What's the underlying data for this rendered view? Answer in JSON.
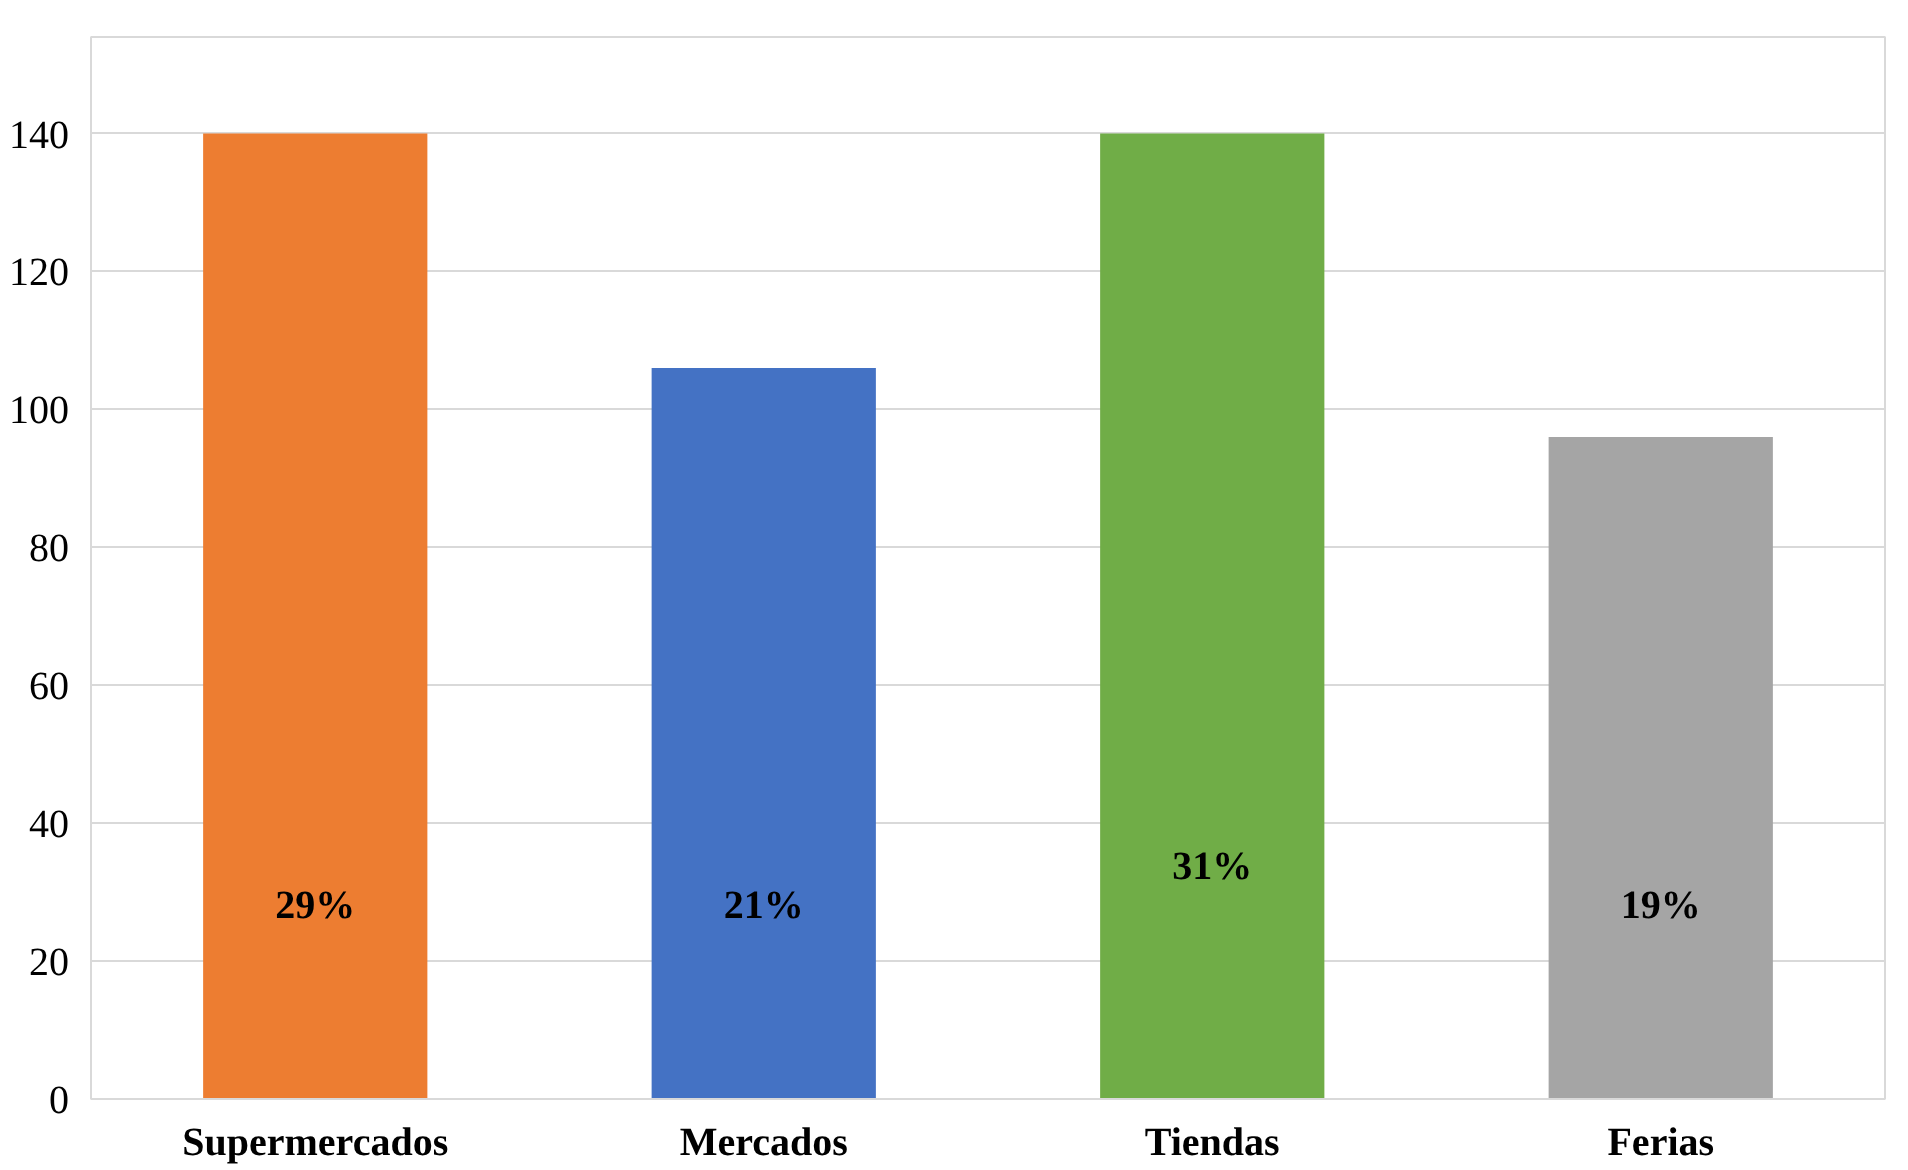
{
  "chart_data": {
    "type": "bar",
    "categories": [
      "Supermercados",
      "Mercados",
      "Tiendas",
      "Ferias"
    ],
    "values": [
      140,
      106,
      140,
      96
    ],
    "colors": [
      "#ed7d31",
      "#4472c4",
      "#70ad47",
      "#a5a5a5"
    ],
    "annotations": [
      "29%",
      "21%",
      "31%",
      "19%"
    ],
    "ylim": [
      0,
      140
    ],
    "yticks": [
      0,
      20,
      40,
      60,
      80,
      100,
      120,
      140
    ],
    "grid": "y"
  }
}
